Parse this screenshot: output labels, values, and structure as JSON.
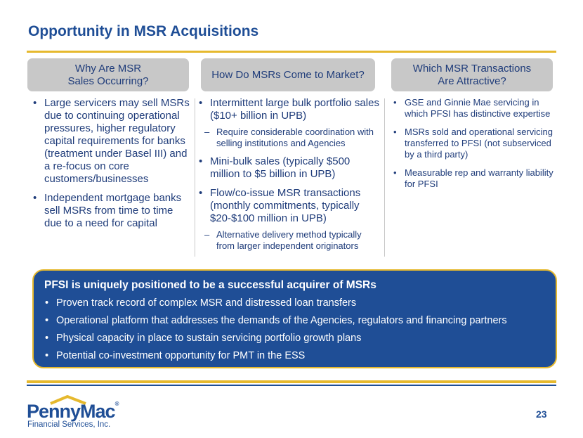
{
  "title": "Opportunity in MSR Acquisitions",
  "columns": [
    {
      "header": "Why Are MSR\nSales Occurring?",
      "bullets": [
        "Large servicers may sell MSRs due to continuing operational pressures, higher regulatory capital requirements for banks (treatment under Basel III) and a re-focus on core customers/businesses",
        "Independent mortgage banks sell MSRs from time to time due to a need for capital"
      ]
    },
    {
      "header": "How Do MSRs Come to Market?",
      "bullets": [
        "Intermittent large bulk portfolio sales ($10+ billion in UPB)",
        "Require considerable coordination with selling institutions and Agencies",
        "Mini-bulk sales (typically $500 million to $5 billion in UPB)",
        "Flow/co-issue MSR transactions (monthly commitments, typically $20-$100 million in UPB)",
        "Alternative delivery method typically from larger independent originators"
      ]
    },
    {
      "header": "Which MSR Transactions\nAre Attractive?",
      "bullets": [
        "GSE and Ginnie Mae servicing in which PFSI has distinctive expertise",
        "MSRs sold and operational servicing transferred to PFSI (not subserviced by a third party)",
        "Measurable rep and warranty liability for PFSI"
      ]
    }
  ],
  "callout": {
    "title": "PFSI is uniquely positioned to be a successful acquirer of MSRs",
    "items": [
      "Proven track record of complex MSR and distressed loan transfers",
      "Operational platform that addresses the demands of the Agencies, regulators and financing partners",
      "Physical capacity in place to sustain servicing portfolio growth plans",
      "Potential co-investment opportunity for PMT in the ESS"
    ]
  },
  "logo": {
    "word": "PennyMac",
    "reg": "®",
    "subtitle": "Financial Services, Inc."
  },
  "page_number": "23",
  "colors": {
    "navy": "#1f4e96",
    "gold": "#e6b92e",
    "header_gray": "#c8c8c8",
    "text": "#1f3c7a"
  }
}
